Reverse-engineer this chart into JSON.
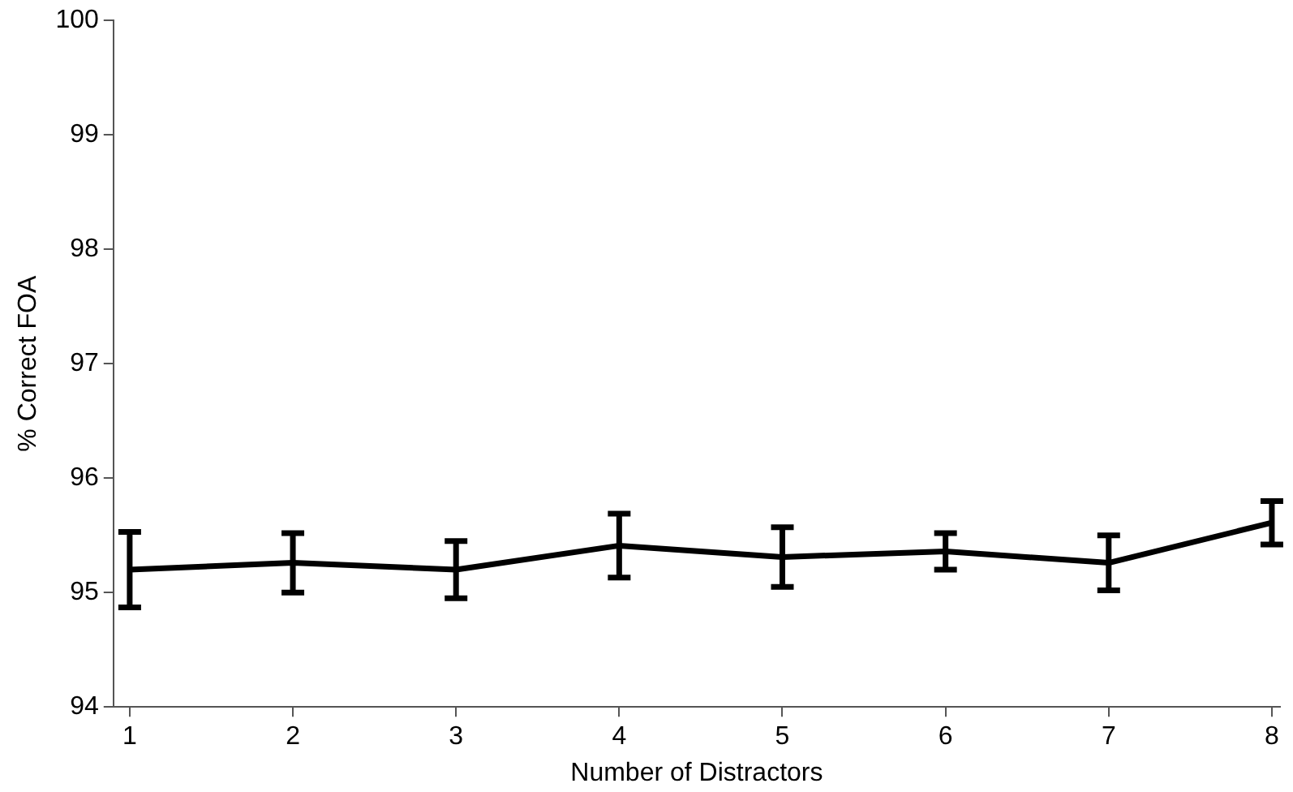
{
  "chart_data": {
    "type": "line",
    "xlabel": "Number of Distractors",
    "ylabel": "% Correct FOA",
    "x": [
      1,
      2,
      3,
      4,
      5,
      6,
      7,
      8
    ],
    "values": [
      95.2,
      95.26,
      95.2,
      95.41,
      95.31,
      95.36,
      95.26,
      95.61
    ],
    "errors": [
      0.33,
      0.26,
      0.25,
      0.28,
      0.26,
      0.16,
      0.24,
      0.19
    ],
    "color": "#000000",
    "xlim": [
      0.9,
      8.05
    ],
    "xticks": [
      1,
      2,
      3,
      4,
      5,
      6,
      7,
      8
    ],
    "ylim": [
      94,
      100
    ],
    "yticks": [
      94,
      95,
      96,
      97,
      98,
      99,
      100
    ],
    "grid": false,
    "legend": false
  }
}
